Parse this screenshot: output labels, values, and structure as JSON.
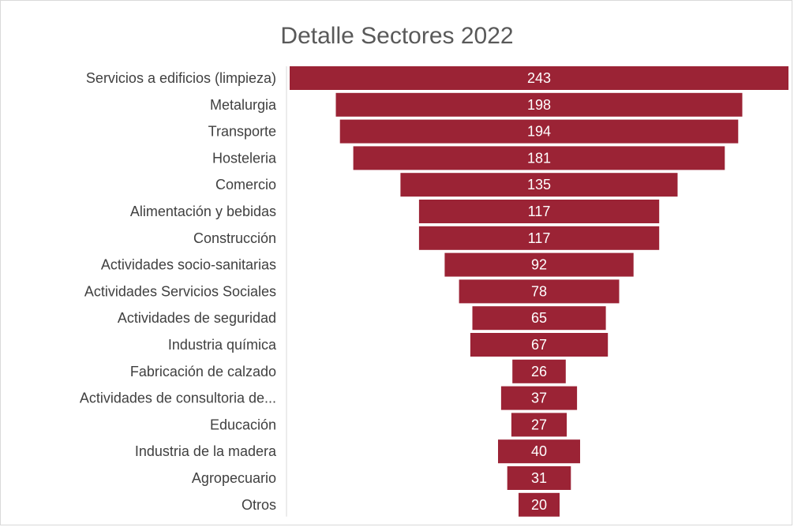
{
  "chart_data": {
    "type": "bar",
    "variant": "funnel",
    "title": "Detalle Sectores 2022",
    "categories": [
      "Servicios a edificios (limpieza)",
      "Metalurgia",
      "Transporte",
      "Hosteleria",
      "Comercio",
      "Alimentación y bebidas",
      "Construcción",
      "Actividades socio-sanitarias",
      "Actividades Servicios Sociales",
      "Actividades de seguridad",
      "Industria química",
      "Fabricación de calzado",
      "Actividades de consultoria de...",
      "Educación",
      "Industria de la madera",
      "Agropecuario",
      "Otros"
    ],
    "values": [
      243,
      198,
      194,
      181,
      135,
      117,
      117,
      92,
      78,
      65,
      67,
      26,
      37,
      27,
      40,
      31,
      20
    ],
    "data_labels": true,
    "legend": "none",
    "grid": false,
    "colors": {
      "bar": "#9b2335",
      "axis_line": "#d9d9d9",
      "label_text": "#404040",
      "value_text": "#ffffff"
    }
  }
}
